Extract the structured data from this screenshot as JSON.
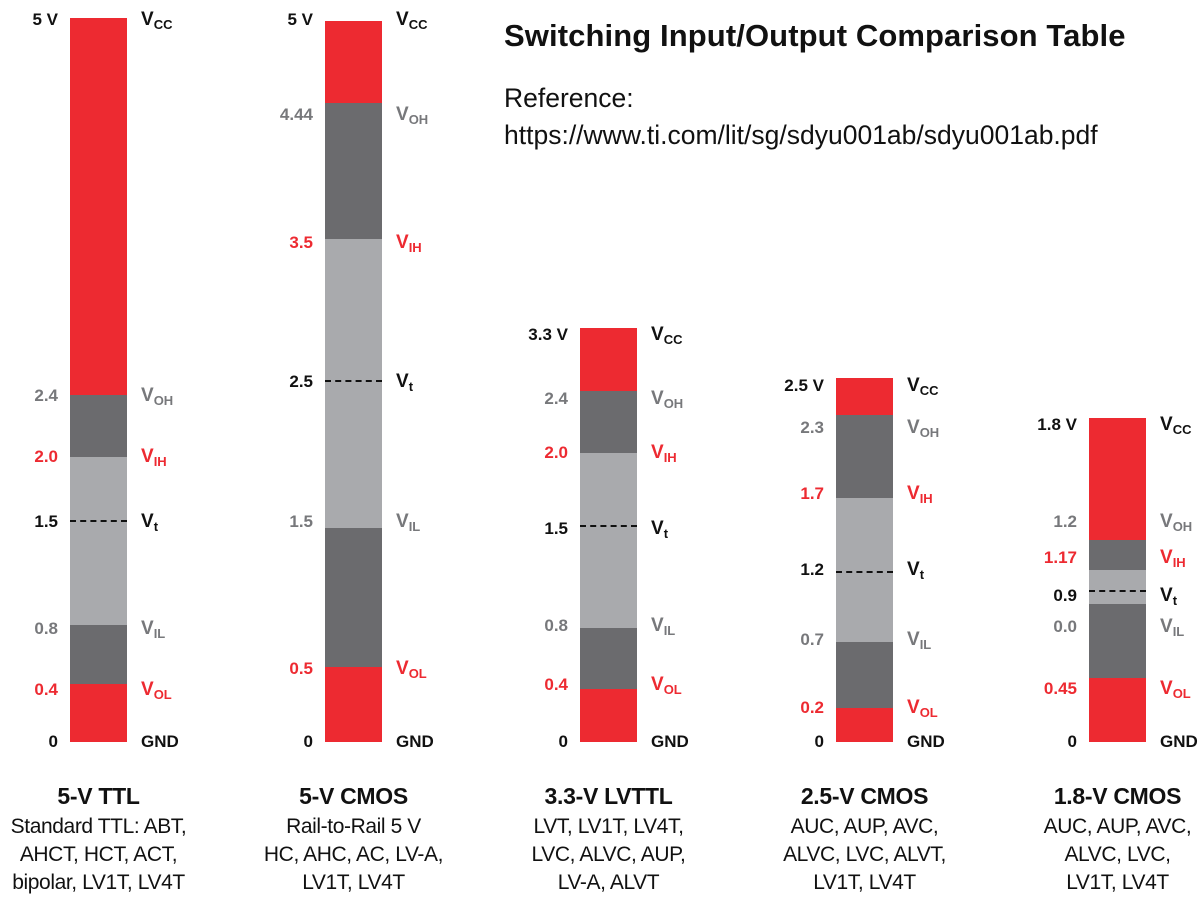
{
  "header": {
    "title": "Switching Input/Output Comparison Table",
    "reference_label": "Reference:",
    "reference_url": "https://www.ti.com/lit/sg/sdyu001ab/sdyu001ab.pdf"
  },
  "colors": {
    "red": "#ed2a31",
    "dark_gray": "#6b6b6e",
    "light_gray": "#a9aaad",
    "value_gray": "#77787b",
    "black": "#111111"
  },
  "signal_names": {
    "vcc": [
      "V",
      "CC"
    ],
    "voh": [
      "V",
      "OH"
    ],
    "vih": [
      "V",
      "IH"
    ],
    "vt": [
      "V",
      "t"
    ],
    "vil": [
      "V",
      "IL"
    ],
    "vol": [
      "V",
      "OL"
    ],
    "gnd": "GND"
  },
  "families": [
    {
      "id": "5v-ttl",
      "title": "5-V TTL",
      "description": [
        "Standard TTL: ABT,",
        "AHCT, HCT, ACT,",
        "bipolar, LV1T, LV4T"
      ],
      "levels": {
        "vcc": "5 V",
        "voh": "2.4",
        "vih": "2.0",
        "vt": "1.5",
        "vil": "0.8",
        "vol": "0.4",
        "gnd": "0"
      }
    },
    {
      "id": "5v-cmos",
      "title": "5-V CMOS",
      "description": [
        "Rail-to-Rail 5 V",
        "HC, AHC, AC, LV-A,",
        "LV1T, LV4T"
      ],
      "levels": {
        "vcc": "5 V",
        "voh": "4.44",
        "vih": "3.5",
        "vt": "2.5",
        "vil": "1.5",
        "vol": "0.5",
        "gnd": "0"
      }
    },
    {
      "id": "3v3-lvttl",
      "title": "3.3-V LVTTL",
      "description": [
        "LVT, LV1T, LV4T,",
        "LVC, ALVC, AUP,",
        "LV-A, ALVT"
      ],
      "levels": {
        "vcc": "3.3 V",
        "voh": "2.4",
        "vih": "2.0",
        "vt": "1.5",
        "vil": "0.8",
        "vol": "0.4",
        "gnd": "0"
      }
    },
    {
      "id": "2v5-cmos",
      "title": "2.5-V CMOS",
      "description": [
        "AUC, AUP, AVC,",
        "ALVC, LVC, ALVT,",
        "LV1T, LV4T"
      ],
      "levels": {
        "vcc": "2.5 V",
        "voh": "2.3",
        "vih": "1.7",
        "vt": "1.2",
        "vil": "0.7",
        "vol": "0.2",
        "gnd": "0"
      }
    },
    {
      "id": "1v8-cmos",
      "title": "1.8-V CMOS",
      "description": [
        "AUC, AUP, AVC,",
        "ALVC, LVC,",
        "LV1T, LV4T"
      ],
      "levels": {
        "vcc": "1.8 V",
        "voh": "1.2",
        "vih": "1.17",
        "vt": "0.9",
        "vil": "0.0",
        "vol": "0.45",
        "gnd": "0"
      }
    }
  ]
}
